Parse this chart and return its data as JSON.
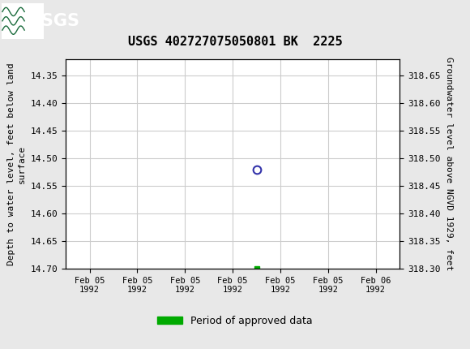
{
  "title": "USGS 402727075050801 BK  2225",
  "ylabel_left": "Depth to water level, feet below land\nsurface",
  "ylabel_right": "Groundwater level above NGVD 1929, feet",
  "ylim_left": [
    14.7,
    14.32
  ],
  "ylim_right": [
    318.3,
    318.68
  ],
  "yticks_left": [
    14.35,
    14.4,
    14.45,
    14.5,
    14.55,
    14.6,
    14.65,
    14.7
  ],
  "yticks_right": [
    318.65,
    318.6,
    318.55,
    318.5,
    318.45,
    318.4,
    318.35,
    318.3
  ],
  "data_point_x": 3.5,
  "data_point_y": 14.52,
  "green_point_x": 3.5,
  "green_point_y": 14.7,
  "header_color": "#1a6b3c",
  "header_text_color": "#ffffff",
  "grid_color": "#cccccc",
  "plot_bg": "#ffffff",
  "outer_bg": "#e8e8e8",
  "legend_label": "Period of approved data",
  "legend_color": "#00aa00",
  "circle_color": "#3333aa",
  "x_tick_labels": [
    "Feb 05\n1992",
    "Feb 05\n1992",
    "Feb 05\n1992",
    "Feb 05\n1992",
    "Feb 05\n1992",
    "Feb 05\n1992",
    "Feb 06\n1992"
  ],
  "x_positions": [
    0,
    1,
    2,
    3,
    4,
    5,
    6
  ],
  "xlim": [
    -0.5,
    6.5
  ]
}
